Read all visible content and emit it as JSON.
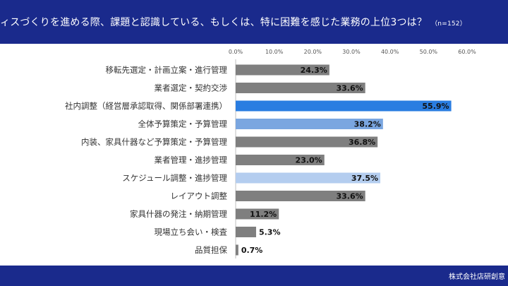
{
  "header": {
    "title": "ィスづくりを進める際、課題と認識している、もしくは、特に困難を感じた業務の上位3つは？",
    "n_label": "（n=152）"
  },
  "footer": {
    "company": "株式会社店研創意"
  },
  "chart_data": {
    "type": "bar",
    "orientation": "horizontal",
    "categories": [
      "移転先選定・計画立案・進行管理",
      "業者選定・契約交渉",
      "社内調整（経営層承認取得、関係部署連携）",
      "全体予算策定・予算管理",
      "内装、家具什器など予算策定・予算管理",
      "業者管理・進捗管理",
      "スケジュール調整・進捗管理",
      "レイアウト調整",
      "家具什器の発注・納期管理",
      "現場立ち会い・検査",
      "品質担保"
    ],
    "values": [
      24.3,
      33.6,
      55.9,
      38.2,
      36.8,
      23.0,
      37.5,
      33.6,
      11.2,
      5.3,
      0.7
    ],
    "value_labels": [
      "24.3%",
      "33.6%",
      "55.9%",
      "38.2%",
      "36.8%",
      "23.0%",
      "37.5%",
      "33.6%",
      "11.2%",
      "5.3%",
      "0.7%"
    ],
    "tick_labels": [
      "0.0%",
      "10.0%",
      "20.0%",
      "30.0%",
      "40.0%",
      "50.0%",
      "60.0%"
    ],
    "xlim": [
      0,
      60
    ],
    "xlim_max_display": 60,
    "grid": false,
    "colors": [
      "#7f7f7f",
      "#7f7f7f",
      "#2a7de1",
      "#7aa6e0",
      "#7f7f7f",
      "#7f7f7f",
      "#b4cdef",
      "#7f7f7f",
      "#7f7f7f",
      "#7f7f7f",
      "#7f7f7f"
    ]
  }
}
